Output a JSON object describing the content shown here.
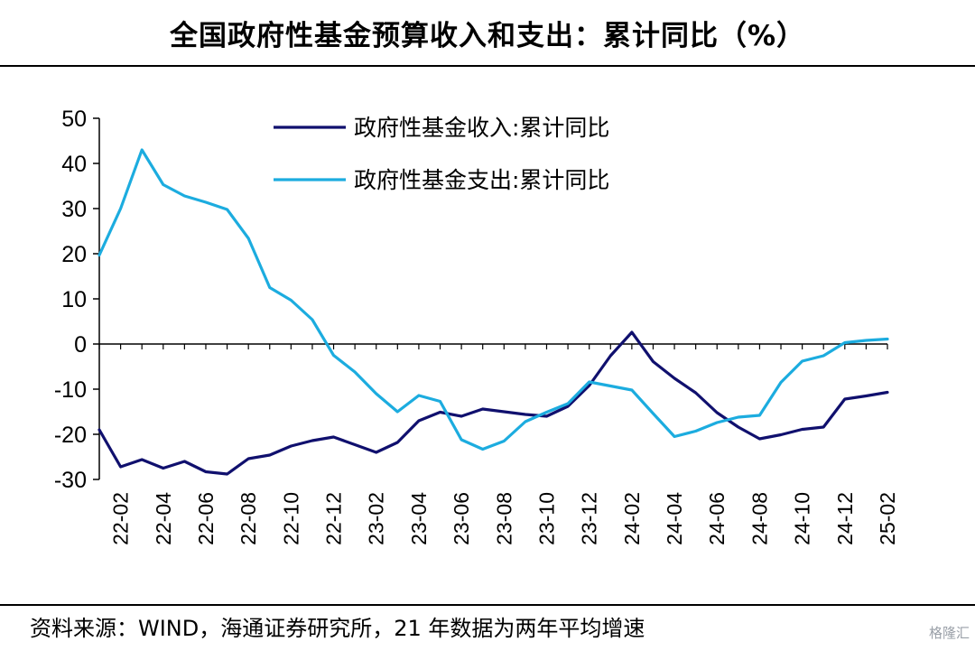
{
  "header": {
    "title": "全国政府性基金预算收入和支出：累计同比（%）"
  },
  "footer": {
    "source": "资料来源：WIND，海通证券研究所，21 年数据为两年平均增速",
    "watermark": "格隆汇"
  },
  "chart_data": {
    "type": "line",
    "title": "全国政府性基金预算收入和支出：累计同比（%）",
    "xlabel": "",
    "ylabel": "",
    "ylim": [
      -30,
      50
    ],
    "yticks": [
      50,
      40,
      30,
      20,
      10,
      0,
      -10,
      -20,
      -30
    ],
    "grid": false,
    "legend_position": "top",
    "x": [
      "22-01",
      "22-02",
      "22-03",
      "22-04",
      "22-05",
      "22-06",
      "22-07",
      "22-08",
      "22-09",
      "22-10",
      "22-11",
      "22-12",
      "23-01",
      "23-02",
      "23-03",
      "23-04",
      "23-05",
      "23-06",
      "23-07",
      "23-08",
      "23-09",
      "23-10",
      "23-11",
      "23-12",
      "24-01",
      "24-02",
      "24-03",
      "24-04",
      "24-05",
      "24-06",
      "24-07",
      "24-08",
      "24-09",
      "24-10",
      "24-11",
      "24-12",
      "25-01",
      "25-02"
    ],
    "xtick_labels": [
      "22-02",
      "22-04",
      "22-06",
      "22-08",
      "22-10",
      "22-12",
      "23-02",
      "23-04",
      "23-06",
      "23-08",
      "23-10",
      "23-12",
      "24-02",
      "24-04",
      "24-06",
      "24-08",
      "24-10",
      "24-12",
      "25-02"
    ],
    "series": [
      {
        "name": "政府性基金收入:累计同比",
        "color": "#10106e",
        "values": [
          -19,
          -27.2,
          -25.6,
          -27.5,
          -26.0,
          -28.3,
          -28.8,
          -25.4,
          -24.6,
          -22.6,
          -21.4,
          -20.6,
          -22.3,
          -24.0,
          -21.8,
          -17.0,
          -15.1,
          -16.0,
          -14.4,
          -15.0,
          -15.6,
          -16.0,
          -13.8,
          -9.2,
          -2.6,
          2.6,
          -3.9,
          -7.6,
          -10.8,
          -15.2,
          -18.4,
          -21.0,
          -20.1,
          -18.9,
          -18.4,
          -12.2,
          -11.5,
          -10.7
        ]
      },
      {
        "name": "政府性基金支出:累计同比",
        "color": "#1cacdf",
        "values": [
          19.7,
          30.0,
          43.0,
          35.3,
          32.8,
          31.4,
          29.8,
          23.4,
          12.5,
          9.7,
          5.4,
          -2.5,
          -6.2,
          -11.0,
          -15.0,
          -11.4,
          -12.7,
          -21.2,
          -23.3,
          -21.5,
          -17.2,
          -15.1,
          -13.2,
          -8.4,
          -9.3,
          -10.2,
          -15.4,
          -20.5,
          -19.3,
          -17.4,
          -16.2,
          -15.8,
          -8.5,
          -3.8,
          -2.6,
          0.3,
          0.8,
          1.1
        ]
      }
    ]
  }
}
